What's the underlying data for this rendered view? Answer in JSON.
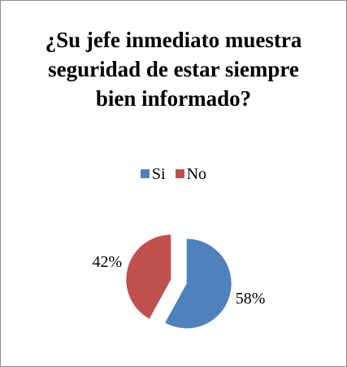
{
  "chart_data": {
    "type": "pie",
    "title": "¿Su jefe inmediato muestra seguridad de estar siempre bien informado?",
    "categories": [
      "Si",
      "No"
    ],
    "values": [
      58,
      42
    ],
    "value_labels": [
      "58%",
      "42%"
    ],
    "colors": [
      "#4f81bd",
      "#c0504d"
    ],
    "legend": "top"
  }
}
